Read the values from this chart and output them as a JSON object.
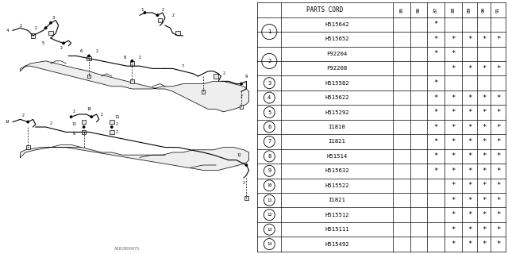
{
  "watermark": "A082B00075",
  "rows": [
    {
      "num": "1",
      "parts": [
        "H515642",
        "H515652"
      ],
      "marks": [
        [
          "",
          "",
          "*",
          "",
          "",
          "",
          ""
        ],
        [
          "",
          "",
          "*",
          "*",
          "*",
          "*",
          "*"
        ]
      ]
    },
    {
      "num": "2",
      "parts": [
        "F92204",
        "F92208"
      ],
      "marks": [
        [
          "",
          "",
          "*",
          "*",
          "",
          "",
          ""
        ],
        [
          "",
          "",
          "",
          "*",
          "*",
          "*",
          "*"
        ]
      ]
    },
    {
      "num": "3",
      "parts": [
        "H515582"
      ],
      "marks": [
        [
          "",
          "",
          "*",
          "",
          "",
          "",
          ""
        ]
      ]
    },
    {
      "num": "4",
      "parts": [
        "H515622"
      ],
      "marks": [
        [
          "",
          "",
          "*",
          "*",
          "*",
          "*",
          "*"
        ]
      ]
    },
    {
      "num": "5",
      "parts": [
        "H515292"
      ],
      "marks": [
        [
          "",
          "",
          "*",
          "*",
          "*",
          "*",
          "*"
        ]
      ]
    },
    {
      "num": "6",
      "parts": [
        "I1810"
      ],
      "marks": [
        [
          "",
          "",
          "*",
          "*",
          "*",
          "*",
          "*"
        ]
      ]
    },
    {
      "num": "7",
      "parts": [
        "I1821"
      ],
      "marks": [
        [
          "",
          "",
          "*",
          "*",
          "*",
          "*",
          "*"
        ]
      ]
    },
    {
      "num": "8",
      "parts": [
        "H51514"
      ],
      "marks": [
        [
          "",
          "",
          "*",
          "*",
          "*",
          "*",
          "*"
        ]
      ]
    },
    {
      "num": "9",
      "parts": [
        "H515632"
      ],
      "marks": [
        [
          "",
          "",
          "*",
          "*",
          "*",
          "*",
          "*"
        ]
      ]
    },
    {
      "num": "10",
      "parts": [
        "H515522"
      ],
      "marks": [
        [
          "",
          "",
          "",
          "*",
          "*",
          "*",
          "*"
        ]
      ]
    },
    {
      "num": "11",
      "parts": [
        "I1821"
      ],
      "marks": [
        [
          "",
          "",
          "",
          "*",
          "*",
          "*",
          "*"
        ]
      ]
    },
    {
      "num": "12",
      "parts": [
        "H515512"
      ],
      "marks": [
        [
          "",
          "",
          "",
          "*",
          "*",
          "*",
          "*"
        ]
      ]
    },
    {
      "num": "13",
      "parts": [
        "H515111"
      ],
      "marks": [
        [
          "",
          "",
          "",
          "*",
          "*",
          "*",
          "*"
        ]
      ]
    },
    {
      "num": "14",
      "parts": [
        "H515492"
      ],
      "marks": [
        [
          "",
          "",
          "",
          "*",
          "*",
          "*",
          "*"
        ]
      ]
    }
  ],
  "year_cols": [
    "85",
    "86",
    "87",
    "88",
    "89",
    "90",
    "91"
  ],
  "bg_color": "#ffffff",
  "line_color": "#000000",
  "gray_color": "#aaaaaa"
}
